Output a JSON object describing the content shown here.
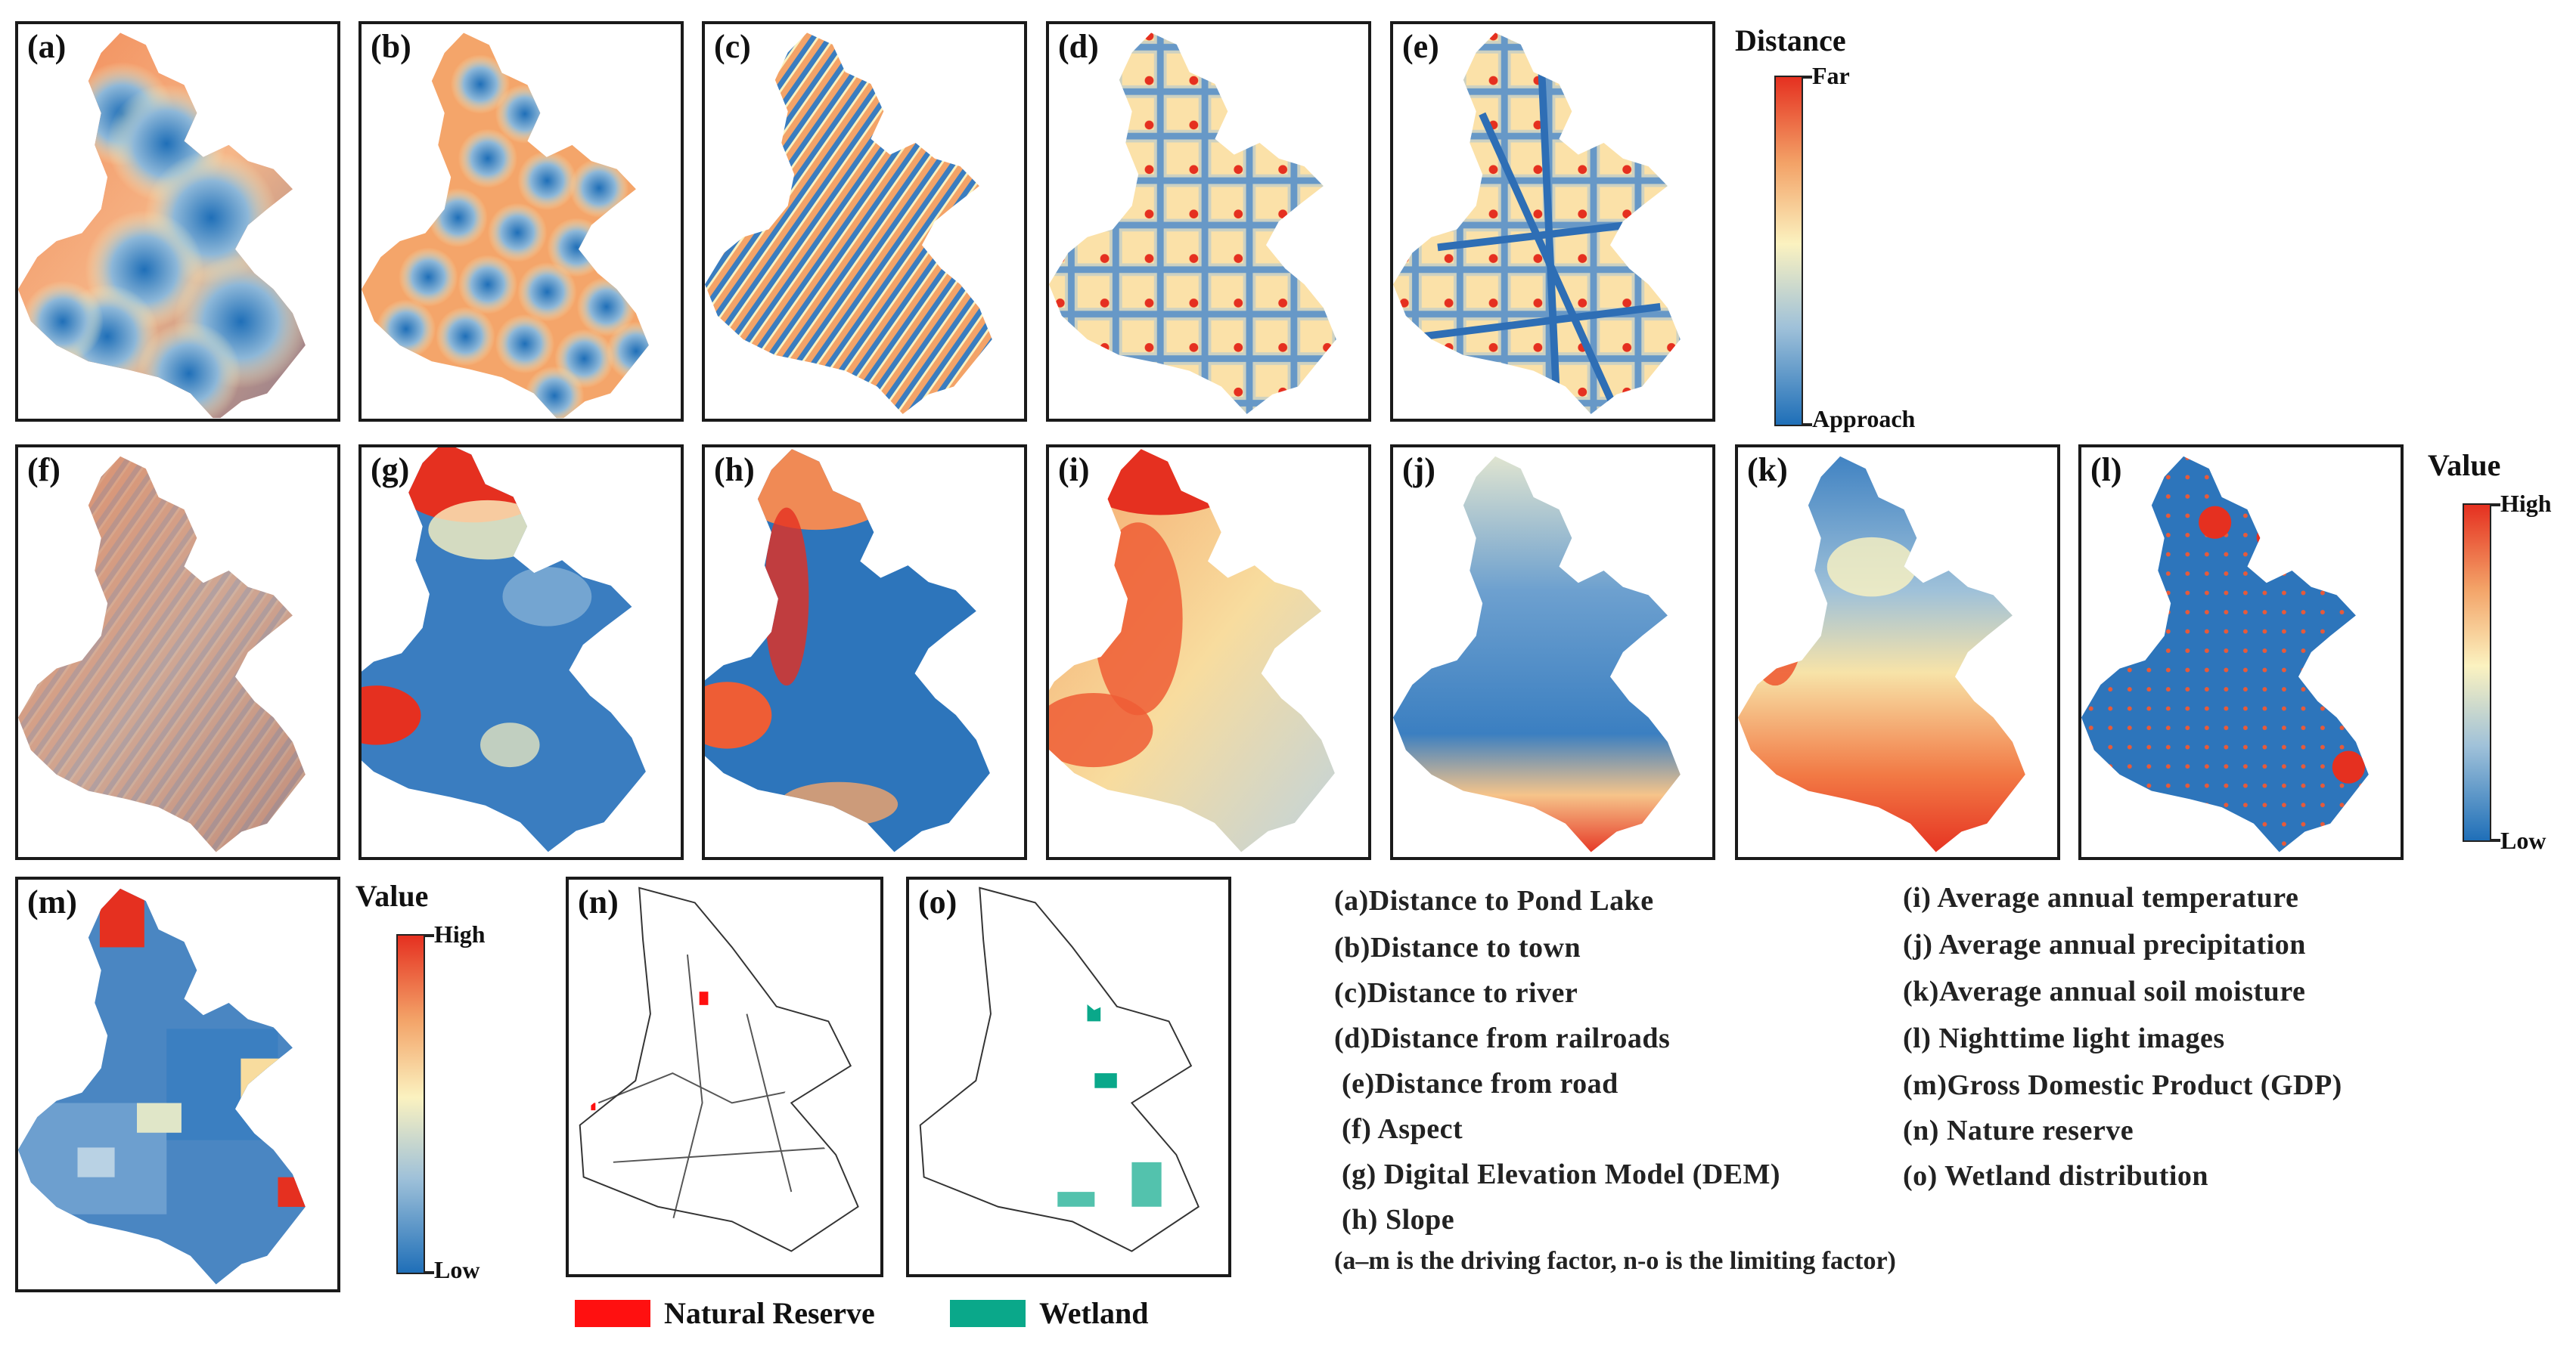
{
  "panels": {
    "a": "(a)",
    "b": "(b)",
    "c": "(c)",
    "d": "(d)",
    "e": "(e)",
    "f": "(f)",
    "g": "(g)",
    "h": "(h)",
    "i": "(i)",
    "j": "(j)",
    "k": "(k)",
    "l": "(l)",
    "m": "(m)",
    "n": "(n)",
    "o": "(o)"
  },
  "legends": {
    "distance": {
      "title": "Distance",
      "high": "Far",
      "low": "Approach"
    },
    "value_main": {
      "title": "Value",
      "high": "High",
      "low": "Low"
    },
    "value_gdp": {
      "title": "Value",
      "high": "High",
      "low": "Low"
    },
    "reserve": {
      "label": "Natural Reserve",
      "color": "#ff1010"
    },
    "wetland": {
      "label": "Wetland",
      "color": "#0aa88a"
    }
  },
  "factors_left": [
    "(a)Distance to Pond Lake",
    "(b)Distance to town",
    "(c)Distance to river",
    "(d)Distance from railroads",
    "(e)Distance from road",
    "(f) Aspect",
    "(g) Digital Elevation Model (DEM)",
    "(h) Slope"
  ],
  "factors_right": [
    "(i)  Average annual temperature",
    "(j)  Average annual precipitation",
    "(k)Average annual soil moisture",
    "(l)  Nighttime light images",
    "(m)Gross Domestic Product (GDP)",
    "(n)  Nature reserve",
    "(o)  Wetland distribution"
  ],
  "note": "(a–m is the driving factor, n-o is the limiting factor)",
  "colors": {
    "high": "#e53020",
    "mid": "#fbf2c0",
    "low": "#1f6fb8"
  }
}
